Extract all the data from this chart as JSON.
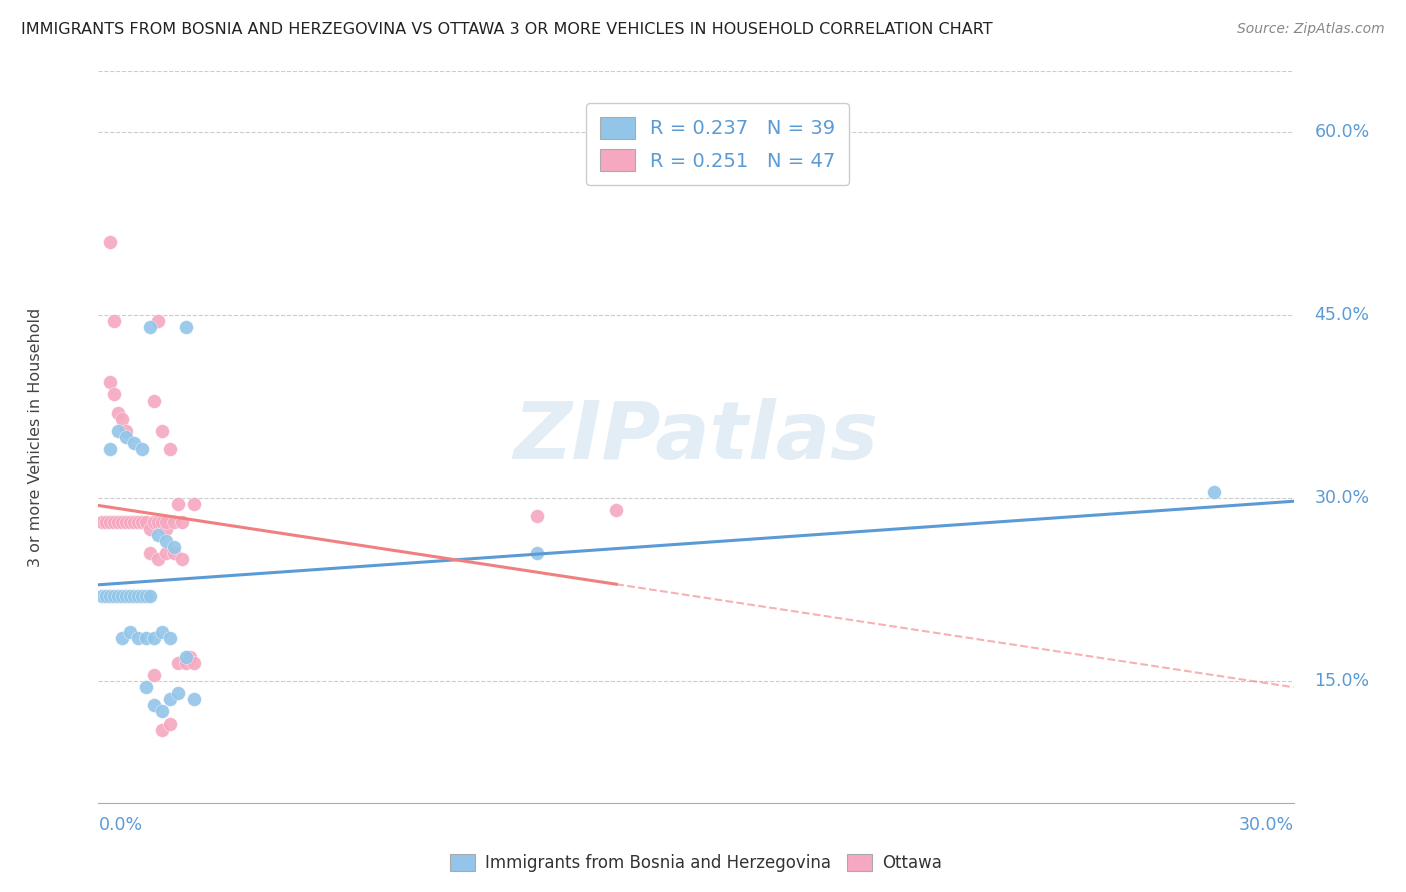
{
  "title": "IMMIGRANTS FROM BOSNIA AND HERZEGOVINA VS OTTAWA 3 OR MORE VEHICLES IN HOUSEHOLD CORRELATION CHART",
  "source": "Source: ZipAtlas.com",
  "ylabel": "3 or more Vehicles in Household",
  "ytick_vals": [
    0.15,
    0.3,
    0.45,
    0.6
  ],
  "xlim": [
    0.0,
    0.3
  ],
  "ylim": [
    0.05,
    0.65
  ],
  "legend_label1": "Immigrants from Bosnia and Herzegovina",
  "legend_label2": "Ottawa",
  "R1": "0.237",
  "N1": "39",
  "R2": "0.251",
  "N2": "47",
  "watermark": "ZIPatlas",
  "color_blue": "#92C5E8",
  "color_pink": "#F5A8C0",
  "color_blue_line": "#5B9BD5",
  "color_pink_line": "#F08080",
  "color_text_blue": "#5B9BD5",
  "color_axis_blue": "#5B9BD5",
  "blue_x": [
    0.001,
    0.002,
    0.003,
    0.004,
    0.005,
    0.006,
    0.007,
    0.008,
    0.009,
    0.01,
    0.011,
    0.012,
    0.013,
    0.003,
    0.005,
    0.007,
    0.009,
    0.011,
    0.013,
    0.015,
    0.017,
    0.019,
    0.022,
    0.006,
    0.008,
    0.01,
    0.012,
    0.014,
    0.016,
    0.018,
    0.012,
    0.014,
    0.016,
    0.018,
    0.02,
    0.022,
    0.024,
    0.11,
    0.28
  ],
  "blue_y": [
    0.22,
    0.22,
    0.22,
    0.22,
    0.22,
    0.22,
    0.22,
    0.22,
    0.22,
    0.22,
    0.22,
    0.22,
    0.22,
    0.34,
    0.355,
    0.35,
    0.345,
    0.34,
    0.44,
    0.27,
    0.265,
    0.26,
    0.44,
    0.185,
    0.19,
    0.185,
    0.185,
    0.185,
    0.19,
    0.185,
    0.145,
    0.13,
    0.125,
    0.135,
    0.14,
    0.17,
    0.135,
    0.255,
    0.305
  ],
  "pink_x": [
    0.001,
    0.002,
    0.003,
    0.004,
    0.005,
    0.006,
    0.007,
    0.008,
    0.009,
    0.01,
    0.011,
    0.012,
    0.013,
    0.014,
    0.015,
    0.016,
    0.017,
    0.003,
    0.004,
    0.005,
    0.006,
    0.007,
    0.003,
    0.004,
    0.015,
    0.013,
    0.015,
    0.017,
    0.019,
    0.021,
    0.023,
    0.014,
    0.016,
    0.018,
    0.02,
    0.022,
    0.024,
    0.014,
    0.016,
    0.018,
    0.02,
    0.11,
    0.13,
    0.017,
    0.019,
    0.021,
    0.024
  ],
  "pink_y": [
    0.28,
    0.28,
    0.28,
    0.28,
    0.28,
    0.28,
    0.28,
    0.28,
    0.28,
    0.28,
    0.28,
    0.28,
    0.275,
    0.28,
    0.28,
    0.28,
    0.275,
    0.395,
    0.385,
    0.37,
    0.365,
    0.355,
    0.51,
    0.445,
    0.445,
    0.255,
    0.25,
    0.255,
    0.255,
    0.25,
    0.17,
    0.155,
    0.11,
    0.115,
    0.165,
    0.165,
    0.165,
    0.38,
    0.355,
    0.34,
    0.295,
    0.285,
    0.29,
    0.28,
    0.28,
    0.28,
    0.295
  ]
}
